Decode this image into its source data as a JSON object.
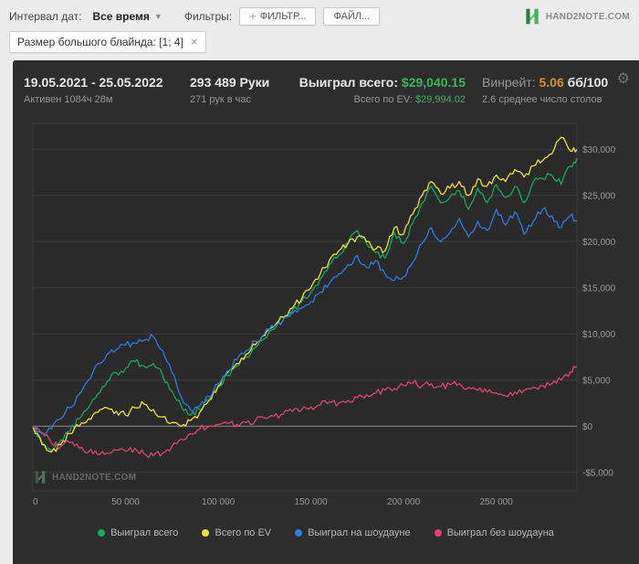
{
  "toolbar": {
    "date_interval_label": "Интервал дат:",
    "date_interval_value": "Все время",
    "filters_label": "Фильтры:",
    "add_filter_button": "ФИЛЬТР...",
    "file_button": "ФАЙЛ...",
    "logo_text": "HAND2NOTE.COM"
  },
  "filter_chip": {
    "label": "Размер большого блайнда: [1; 4]",
    "close": "×"
  },
  "stats": {
    "date_range": "19.05.2021 - 25.05.2022",
    "active_time": "Активен 1084ч 28м",
    "hands": "293 489 Руки",
    "hands_per_hour": "271 рук в час",
    "won_label": "Выиграл всего:",
    "won_value": "$29,040.15",
    "ev_label": "Всего по EV:",
    "ev_value": "$29,994.02",
    "winrate_label": "Винрейт:",
    "winrate_value": "5.06",
    "winrate_unit": "бб/100",
    "avg_tables": "2.6 среднее число столов"
  },
  "watermark": "HAND2NOTE.COM",
  "colors": {
    "won_line": "#17a85b",
    "ev_line": "#f0e03a",
    "showdown_line": "#2b7de0",
    "nonshowdown_line": "#e0436f",
    "value_green": "#3cb45e",
    "winrate_orange": "#d98e32"
  },
  "chart_data": {
    "type": "line",
    "title": "",
    "xlabel": "",
    "ylabel": "",
    "grid": true,
    "legend_position": "bottom",
    "xlim": [
      0,
      293489
    ],
    "ylim": [
      -7000,
      32800
    ],
    "x_ticks": [
      0,
      50000,
      100000,
      150000,
      200000,
      250000
    ],
    "x_tick_labels": [
      "0",
      "50 000",
      "100 000",
      "150 000",
      "200 000",
      "250 000"
    ],
    "y_ticks": [
      -5000,
      0,
      5000,
      10000,
      15000,
      20000,
      25000,
      30000
    ],
    "y_tick_labels": [
      "-$5,000",
      "$0",
      "$5,000",
      "$10,000",
      "$15,000",
      "$20,000",
      "$25,000",
      "$30,000"
    ],
    "x": [
      0,
      5000,
      10000,
      15000,
      20000,
      25000,
      30000,
      35000,
      40000,
      45000,
      50000,
      55000,
      60000,
      65000,
      70000,
      75000,
      80000,
      85000,
      90000,
      95000,
      100000,
      105000,
      110000,
      115000,
      120000,
      125000,
      130000,
      135000,
      140000,
      145000,
      150000,
      155000,
      160000,
      165000,
      170000,
      175000,
      180000,
      185000,
      190000,
      195000,
      200000,
      205000,
      210000,
      215000,
      220000,
      225000,
      230000,
      235000,
      240000,
      245000,
      250000,
      255000,
      260000,
      265000,
      270000,
      275000,
      280000,
      285000,
      290000,
      293489
    ],
    "series": [
      {
        "name": "Выиграл всего",
        "color": "#17a85b",
        "values": [
          0,
          -1800,
          -2600,
          -1500,
          -500,
          800,
          2000,
          3500,
          4800,
          5800,
          6300,
          7000,
          6500,
          6800,
          5500,
          3800,
          2200,
          1200,
          1800,
          2800,
          4200,
          5500,
          6500,
          7500,
          8500,
          9500,
          10500,
          11500,
          12500,
          13500,
          14500,
          16000,
          17500,
          18500,
          19800,
          21200,
          19800,
          18800,
          18200,
          21000,
          19800,
          22000,
          24200,
          26000,
          24200,
          24800,
          25500,
          23500,
          25800,
          24200,
          26200,
          24800,
          26000,
          24200,
          26500,
          26800,
          27200,
          26200,
          28200,
          29040
        ]
      },
      {
        "name": "Всего по EV",
        "color": "#f0e03a",
        "values": [
          0,
          -2000,
          -2800,
          -2000,
          -800,
          0,
          800,
          1500,
          2000,
          1600,
          1200,
          2000,
          2400,
          1800,
          1000,
          400,
          0,
          600,
          1500,
          2800,
          4400,
          5800,
          6800,
          7800,
          8800,
          9800,
          10800,
          11800,
          12800,
          13800,
          15000,
          16500,
          18000,
          19000,
          19800,
          20500,
          20000,
          19200,
          19000,
          21500,
          20800,
          23000,
          25000,
          26500,
          25200,
          25800,
          26500,
          25000,
          26800,
          26000,
          27200,
          26500,
          27800,
          27000,
          28200,
          28800,
          29500,
          31300,
          29800,
          29994
        ]
      },
      {
        "name": "Выиграл на шоудауне",
        "color": "#2b7de0",
        "values": [
          0,
          -800,
          -300,
          800,
          2000,
          3500,
          5000,
          6800,
          7800,
          8300,
          8800,
          9000,
          9300,
          9700,
          8200,
          5800,
          3200,
          1800,
          2200,
          3200,
          4600,
          6000,
          7200,
          8200,
          9200,
          10000,
          10800,
          11500,
          12200,
          12800,
          13500,
          14500,
          15500,
          16500,
          17500,
          18500,
          17200,
          18000,
          16500,
          15800,
          16200,
          17800,
          19800,
          21500,
          20000,
          21000,
          22500,
          20500,
          22200,
          21200,
          23500,
          21800,
          23200,
          20800,
          22200,
          23500,
          22800,
          21500,
          22800,
          22200
        ]
      },
      {
        "name": "Выиграл без шоудауна",
        "color": "#e0436f",
        "values": [
          0,
          -700,
          -1800,
          -2200,
          -1800,
          -2400,
          -2800,
          -3100,
          -2900,
          -2600,
          -2700,
          -2400,
          -3000,
          -3200,
          -2900,
          -2200,
          -1400,
          -800,
          -300,
          0,
          200,
          300,
          200,
          400,
          600,
          900,
          1100,
          1300,
          1600,
          1800,
          2100,
          2300,
          2600,
          2500,
          2800,
          3100,
          3400,
          3600,
          3900,
          4100,
          4400,
          4700,
          4400,
          4600,
          4300,
          4500,
          4600,
          4200,
          3900,
          3700,
          3600,
          3300,
          3700,
          3900,
          4200,
          4400,
          4600,
          5000,
          5900,
          6500
        ]
      }
    ]
  }
}
